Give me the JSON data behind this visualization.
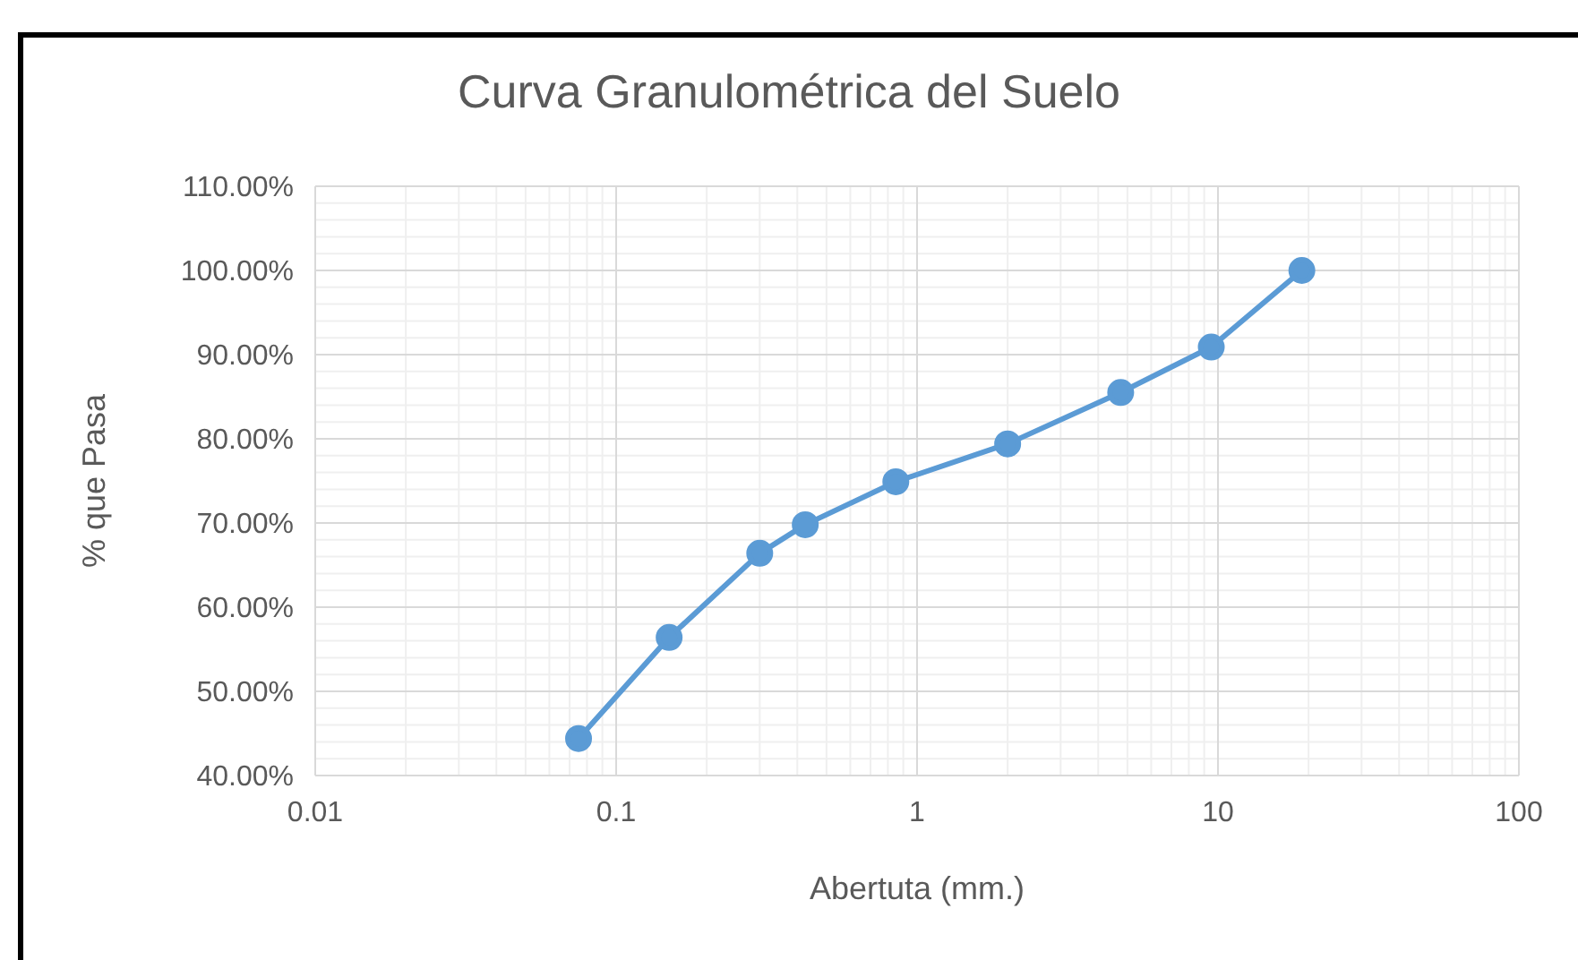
{
  "chart_data": {
    "type": "line",
    "title": "Curva Granulométrica del Suelo",
    "xlabel": "Abertuta (mm.)",
    "ylabel": "% que Pasa",
    "x": [
      0.075,
      0.15,
      0.3,
      0.425,
      0.85,
      2,
      4.75,
      9.5,
      19
    ],
    "series": [
      {
        "color": "#5b9bd5",
        "values": [
          44.4,
          56.4,
          66.4,
          69.8,
          74.9,
          79.4,
          85.5,
          90.9,
          100
        ]
      }
    ],
    "log": "x",
    "xlim": [
      0.01,
      100
    ],
    "xticks": [
      0.01,
      0.1,
      1,
      10,
      100
    ],
    "ylim": [
      40,
      110
    ],
    "yticks": [
      {
        "value": 40,
        "label": "40.00%"
      },
      {
        "value": 50,
        "label": "50.00%"
      },
      {
        "value": 60,
        "label": "60.00%"
      },
      {
        "value": 70,
        "label": "70.00%"
      },
      {
        "value": 80,
        "label": "80.00%"
      },
      {
        "value": 90,
        "label": "90.00%"
      },
      {
        "value": 100,
        "label": "100.00%"
      },
      {
        "value": 110,
        "label": "110.00%"
      }
    ],
    "grid": true,
    "marker": "circle",
    "line_style": "solid",
    "legend": false
  }
}
